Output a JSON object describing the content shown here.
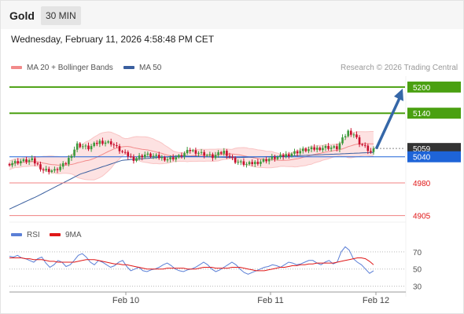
{
  "header": {
    "instrument": "Gold",
    "timeframe": "30 MIN"
  },
  "datetime": "Wednesday, February 11, 2026 4:58:48 PM CET",
  "legend_main": [
    {
      "label": "MA 20 + Bollinger Bands",
      "color": "#f28a8a"
    },
    {
      "label": "MA 50",
      "color": "#3a5f9f"
    }
  ],
  "legend_rsi": [
    {
      "label": "RSI",
      "color": "#5b7fd6"
    },
    {
      "label": "9MA",
      "color": "#e01818"
    }
  ],
  "copyright": "Research © 2026 Trading Central",
  "chart_data": [
    {
      "type": "candlestick",
      "ylim": [
        4890,
        5225
      ],
      "x_ticks": [
        "Feb 10",
        "Feb 11",
        "Feb 12"
      ],
      "levels": [
        {
          "value": 5200,
          "label": "5200",
          "kind": "resistance",
          "color": "#4aa011"
        },
        {
          "value": 5140,
          "label": "5140",
          "kind": "resistance",
          "color": "#4aa011"
        },
        {
          "value": 5059,
          "label": "5059",
          "kind": "last",
          "color": "#333333"
        },
        {
          "value": 5040,
          "label": "5040",
          "kind": "pivot",
          "color": "#1e64d8"
        },
        {
          "value": 4980,
          "label": "4980",
          "kind": "support",
          "color": "#e01818"
        },
        {
          "value": 4905,
          "label": "4905",
          "kind": "support",
          "color": "#e01818"
        }
      ],
      "anchors": [
        [
          0,
          5025
        ],
        [
          4,
          5030
        ],
        [
          8,
          5032
        ],
        [
          12,
          5010
        ],
        [
          16,
          5008
        ],
        [
          20,
          5025
        ],
        [
          24,
          5068
        ],
        [
          28,
          5060
        ],
        [
          32,
          5075
        ],
        [
          36,
          5072
        ],
        [
          40,
          5050
        ],
        [
          44,
          5035
        ],
        [
          48,
          5045
        ],
        [
          52,
          5040
        ],
        [
          56,
          5035
        ],
        [
          60,
          5040
        ],
        [
          64,
          5055
        ],
        [
          68,
          5048
        ],
        [
          72,
          5040
        ],
        [
          76,
          5052
        ],
        [
          80,
          5030
        ],
        [
          84,
          5022
        ],
        [
          88,
          5028
        ],
        [
          92,
          5035
        ],
        [
          96,
          5040
        ],
        [
          100,
          5048
        ],
        [
          104,
          5055
        ],
        [
          108,
          5058
        ],
        [
          112,
          5062
        ],
        [
          116,
          5060
        ],
        [
          118,
          5080
        ],
        [
          120,
          5098
        ],
        [
          122,
          5092
        ],
        [
          124,
          5072
        ],
        [
          126,
          5062
        ],
        [
          128,
          5050
        ],
        [
          129,
          5059
        ]
      ],
      "ma50": [
        [
          0,
          4920
        ],
        [
          10,
          4950
        ],
        [
          25,
          5000
        ],
        [
          40,
          5032
        ],
        [
          60,
          5042
        ],
        [
          80,
          5038
        ],
        [
          100,
          5042
        ],
        [
          115,
          5046
        ],
        [
          129,
          5050
        ]
      ],
      "projection": {
        "from": 5059,
        "to": 5200
      }
    },
    {
      "type": "line",
      "ylim": [
        25,
        80
      ],
      "y_ticks": [
        70,
        50,
        30
      ],
      "dotted_levels": [
        70,
        50,
        30
      ],
      "series": [
        {
          "name": "RSI",
          "values": [
            65,
            64,
            66,
            63,
            62,
            60,
            58,
            62,
            64,
            57,
            52,
            55,
            60,
            58,
            53,
            55,
            60,
            66,
            68,
            64,
            58,
            55,
            60,
            58,
            55,
            52,
            54,
            58,
            60,
            53,
            48,
            50,
            52,
            48,
            47,
            49,
            50,
            52,
            55,
            57,
            54,
            50,
            48,
            47,
            49,
            50,
            52,
            55,
            58,
            55,
            50,
            47,
            49,
            52,
            55,
            58,
            55,
            50,
            46,
            44,
            46,
            48,
            50,
            52,
            53,
            55,
            54,
            52,
            55,
            58,
            57,
            55,
            56,
            58,
            60,
            60,
            57,
            55,
            58,
            60,
            56,
            58,
            70,
            76,
            72,
            62,
            58,
            55,
            50,
            45,
            48
          ]
        },
        {
          "name": "9MA",
          "values": [
            63,
            63,
            63,
            63,
            62,
            62,
            61,
            61,
            61,
            60,
            59,
            59,
            58,
            58,
            58,
            58,
            58,
            59,
            60,
            61,
            61,
            61,
            60,
            59,
            58,
            57,
            56,
            56,
            55,
            55,
            54,
            53,
            52,
            51,
            50,
            50,
            50,
            50,
            50,
            51,
            51,
            51,
            51,
            51,
            50,
            50,
            50,
            51,
            52,
            52,
            52,
            51,
            51,
            51,
            51,
            52,
            52,
            52,
            51,
            50,
            49,
            48,
            48,
            48,
            49,
            50,
            51,
            52,
            52,
            53,
            54,
            54,
            55,
            55,
            56,
            56,
            57,
            57,
            57,
            57,
            57,
            58,
            59,
            60,
            61,
            62,
            63,
            63,
            62,
            59,
            55
          ]
        }
      ]
    }
  ]
}
